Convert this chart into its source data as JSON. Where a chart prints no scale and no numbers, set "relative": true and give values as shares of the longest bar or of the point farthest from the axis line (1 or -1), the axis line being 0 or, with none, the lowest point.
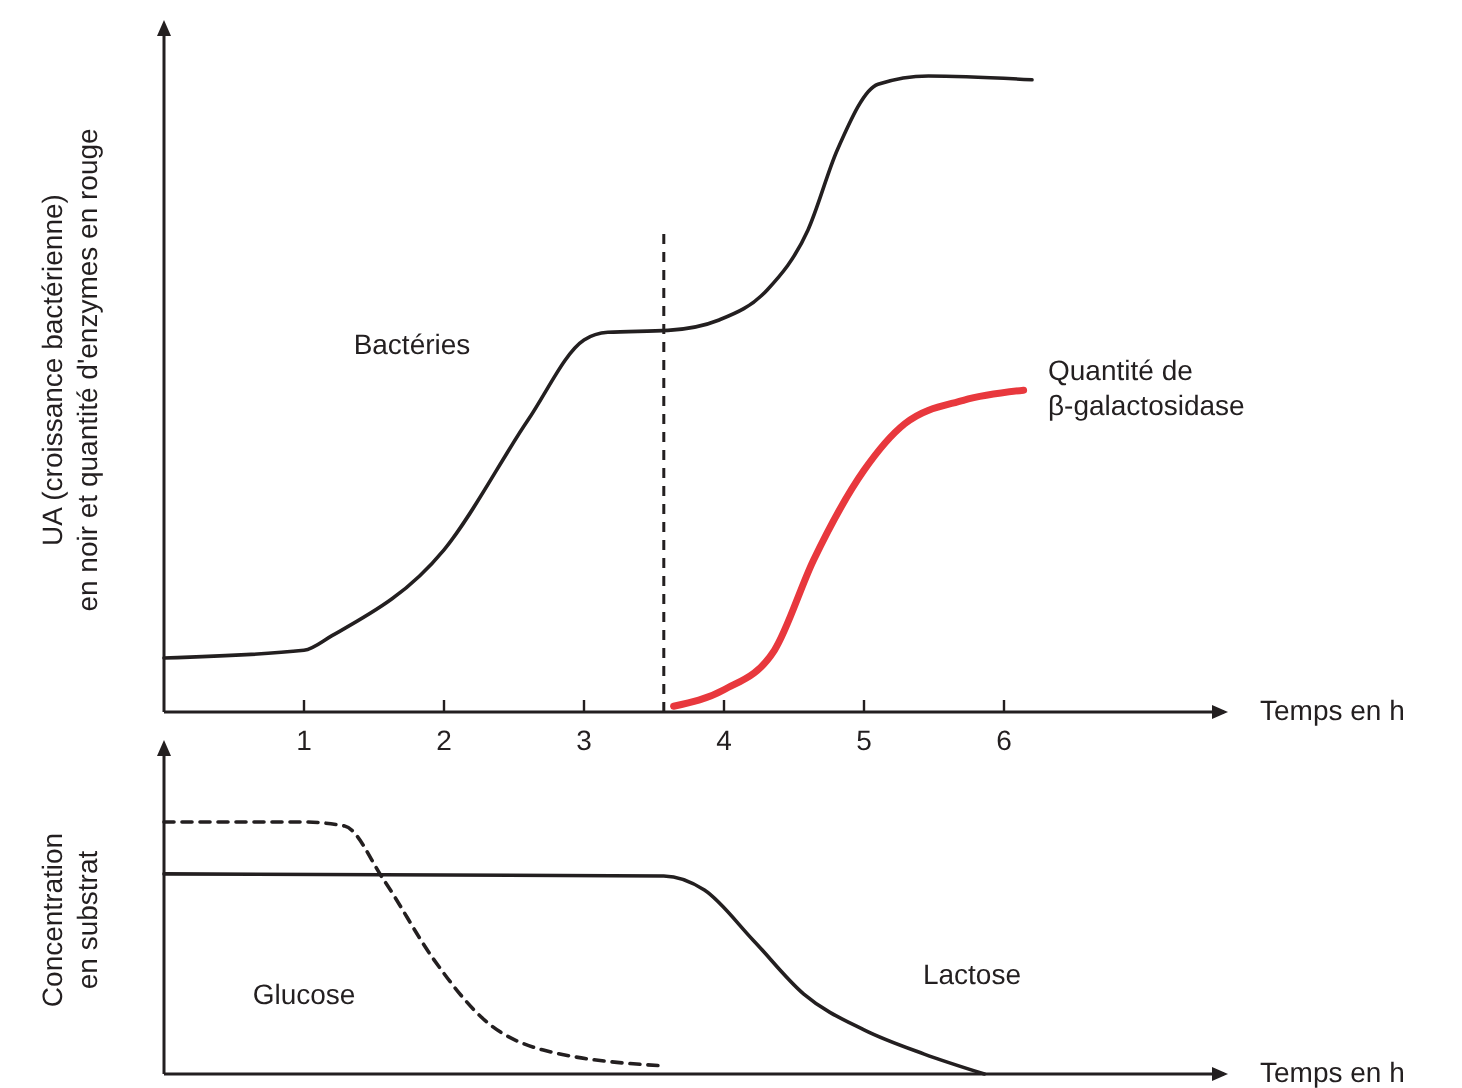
{
  "chart_data": [
    {
      "type": "line",
      "relative": true,
      "xlabel": "Temps en h",
      "ylabel": "UA (croissance bactérienne)\nen noir et quantité d'enzymes en rouge",
      "xlim": [
        0,
        7.6
      ],
      "xticks": [
        1,
        2,
        3,
        4,
        5,
        6
      ],
      "tick_labels": "x",
      "grid": false,
      "series": [
        {
          "name": "Bactéries",
          "color": "#231f20",
          "x": [
            0,
            1,
            1.2,
            2,
            2.6,
            3,
            3.17,
            3.6,
            3.96,
            4.31,
            4.6,
            4.81,
            5.1,
            5.46,
            6.2
          ],
          "values": [
            0.085,
            0.097,
            0.12,
            0.255,
            0.459,
            0.585,
            0.597,
            0.6,
            0.616,
            0.664,
            0.758,
            0.884,
            0.987,
            1,
            0.994
          ]
        },
        {
          "name": "Quantité de\nβ-galactosidase",
          "color": "#e8383d",
          "x": [
            3.64,
            4,
            4.36,
            4.64,
            5,
            5.29,
            5.71,
            6.14
          ],
          "values": [
            0.009,
            0.035,
            0.097,
            0.239,
            0.38,
            0.453,
            0.49,
            0.506
          ]
        }
      ],
      "ref_lines": [
        {
          "axis": "x",
          "value": 3.57,
          "line_style": "dashed",
          "color": "#231f20"
        }
      ]
    },
    {
      "type": "line",
      "relative": true,
      "xlabel": "Temps en h",
      "ylabel": "Concentration\nen substrat",
      "xlim": [
        0,
        7.6
      ],
      "tick_labels": false,
      "grid": false,
      "series": [
        {
          "name": "Lactose",
          "color": "#231f20",
          "line_style": "solid",
          "x": [
            0,
            3.57,
            3.86,
            4.21,
            4.57,
            5,
            5.43,
            5.86
          ],
          "values": [
            0.794,
            0.786,
            0.73,
            0.53,
            0.317,
            0.175,
            0.079,
            0
          ]
        },
        {
          "name": "Glucose",
          "color": "#231f20",
          "line_style": "dashed",
          "x": [
            0,
            1,
            1.29,
            1.57,
            1.93,
            2.29,
            2.71,
            3.57
          ],
          "values": [
            1,
            1,
            0.984,
            0.77,
            0.452,
            0.214,
            0.095,
            0.032
          ]
        }
      ]
    }
  ]
}
